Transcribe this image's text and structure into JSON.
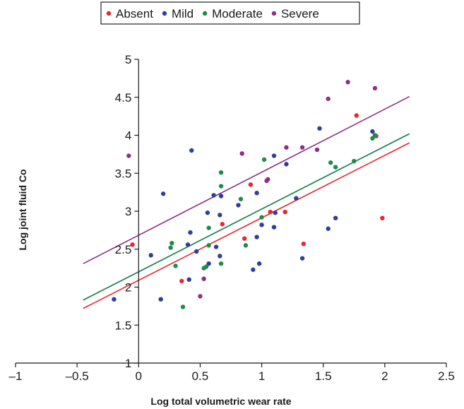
{
  "chart_data": {
    "type": "scatter",
    "title": "",
    "xlabel": "Log total volumetric wear rate",
    "ylabel": "Log joint fluid Co",
    "xlim": [
      -1,
      2.5
    ],
    "ylim": [
      1,
      5
    ],
    "xticks": [
      -1,
      -0.5,
      0,
      0.5,
      1,
      1.5,
      2,
      2.5
    ],
    "xtick_labels": [
      "–1",
      "–0.5",
      "0",
      "0.5",
      "1",
      "1.5",
      "2",
      "2.5"
    ],
    "yticks": [
      1,
      1.5,
      2,
      2.5,
      3,
      3.5,
      4,
      4.5,
      5
    ],
    "ytick_labels": [
      "1",
      "1.5",
      "2",
      "2.5",
      "3",
      "3.5",
      "4",
      "4.5",
      "5"
    ],
    "grid": false,
    "legend_position": "top",
    "series": [
      {
        "name": "Absent",
        "color": "#e8262b",
        "points": [
          [
            -0.05,
            2.56
          ],
          [
            0.35,
            2.08
          ],
          [
            0.68,
            2.83
          ],
          [
            0.86,
            2.64
          ],
          [
            0.91,
            3.35
          ],
          [
            1.07,
            2.99
          ],
          [
            1.19,
            2.99
          ],
          [
            1.34,
            2.57
          ],
          [
            1.77,
            4.26
          ],
          [
            1.93,
            3.99
          ],
          [
            1.98,
            2.91
          ]
        ],
        "trend": [
          [
            -0.45,
            1.72
          ],
          [
            2.2,
            3.9
          ]
        ]
      },
      {
        "name": "Mild",
        "color": "#2e3f99",
        "points": [
          [
            -0.2,
            1.84
          ],
          [
            0.1,
            2.42
          ],
          [
            0.18,
            1.84
          ],
          [
            0.2,
            3.23
          ],
          [
            0.4,
            2.56
          ],
          [
            0.41,
            2.1
          ],
          [
            0.42,
            2.72
          ],
          [
            0.43,
            3.8
          ],
          [
            0.47,
            2.47
          ],
          [
            0.56,
            2.98
          ],
          [
            0.57,
            2.31
          ],
          [
            0.61,
            3.21
          ],
          [
            0.63,
            2.53
          ],
          [
            0.66,
            2.95
          ],
          [
            0.66,
            2.41
          ],
          [
            0.67,
            3.2
          ],
          [
            0.81,
            3.08
          ],
          [
            0.93,
            2.23
          ],
          [
            0.96,
            3.24
          ],
          [
            0.96,
            2.66
          ],
          [
            0.98,
            2.31
          ],
          [
            1.0,
            2.82
          ],
          [
            1.1,
            2.79
          ],
          [
            1.1,
            3.73
          ],
          [
            1.11,
            2.98
          ],
          [
            1.2,
            3.62
          ],
          [
            1.28,
            3.17
          ],
          [
            1.33,
            2.38
          ],
          [
            1.47,
            4.09
          ],
          [
            1.54,
            2.77
          ],
          [
            1.6,
            2.91
          ],
          [
            1.9,
            4.05
          ]
        ],
        "trend": [
          [
            -0.45,
            1.83
          ],
          [
            2.2,
            4.02
          ]
        ]
      },
      {
        "name": "Moderate",
        "color": "#1f8a4c",
        "points": [
          [
            0.26,
            2.52
          ],
          [
            0.27,
            2.58
          ],
          [
            0.3,
            2.28
          ],
          [
            0.36,
            1.74
          ],
          [
            0.53,
            2.25
          ],
          [
            0.55,
            2.27
          ],
          [
            0.57,
            2.55
          ],
          [
            0.57,
            2.78
          ],
          [
            0.67,
            2.31
          ],
          [
            0.67,
            3.33
          ],
          [
            0.67,
            3.51
          ],
          [
            0.83,
            3.16
          ],
          [
            0.87,
            2.55
          ],
          [
            1.0,
            2.92
          ],
          [
            1.02,
            3.68
          ],
          [
            1.56,
            3.64
          ],
          [
            1.6,
            3.58
          ],
          [
            1.75,
            3.66
          ],
          [
            1.9,
            3.96
          ],
          [
            1.92,
            4.0
          ]
        ],
        "trend": [
          [
            -0.45,
            1.83
          ],
          [
            2.2,
            4.02
          ]
        ]
      },
      {
        "name": "Severe",
        "color": "#8e2f87",
        "points": [
          [
            -0.08,
            3.73
          ],
          [
            0.5,
            1.88
          ],
          [
            0.53,
            2.11
          ],
          [
            0.84,
            3.76
          ],
          [
            1.04,
            3.4
          ],
          [
            1.05,
            3.42
          ],
          [
            1.2,
            3.84
          ],
          [
            1.33,
            3.84
          ],
          [
            1.45,
            3.81
          ],
          [
            1.54,
            4.48
          ],
          [
            1.7,
            4.7
          ],
          [
            1.92,
            4.62
          ]
        ],
        "trend": [
          [
            -0.45,
            2.31
          ],
          [
            2.2,
            4.51
          ]
        ]
      }
    ]
  }
}
